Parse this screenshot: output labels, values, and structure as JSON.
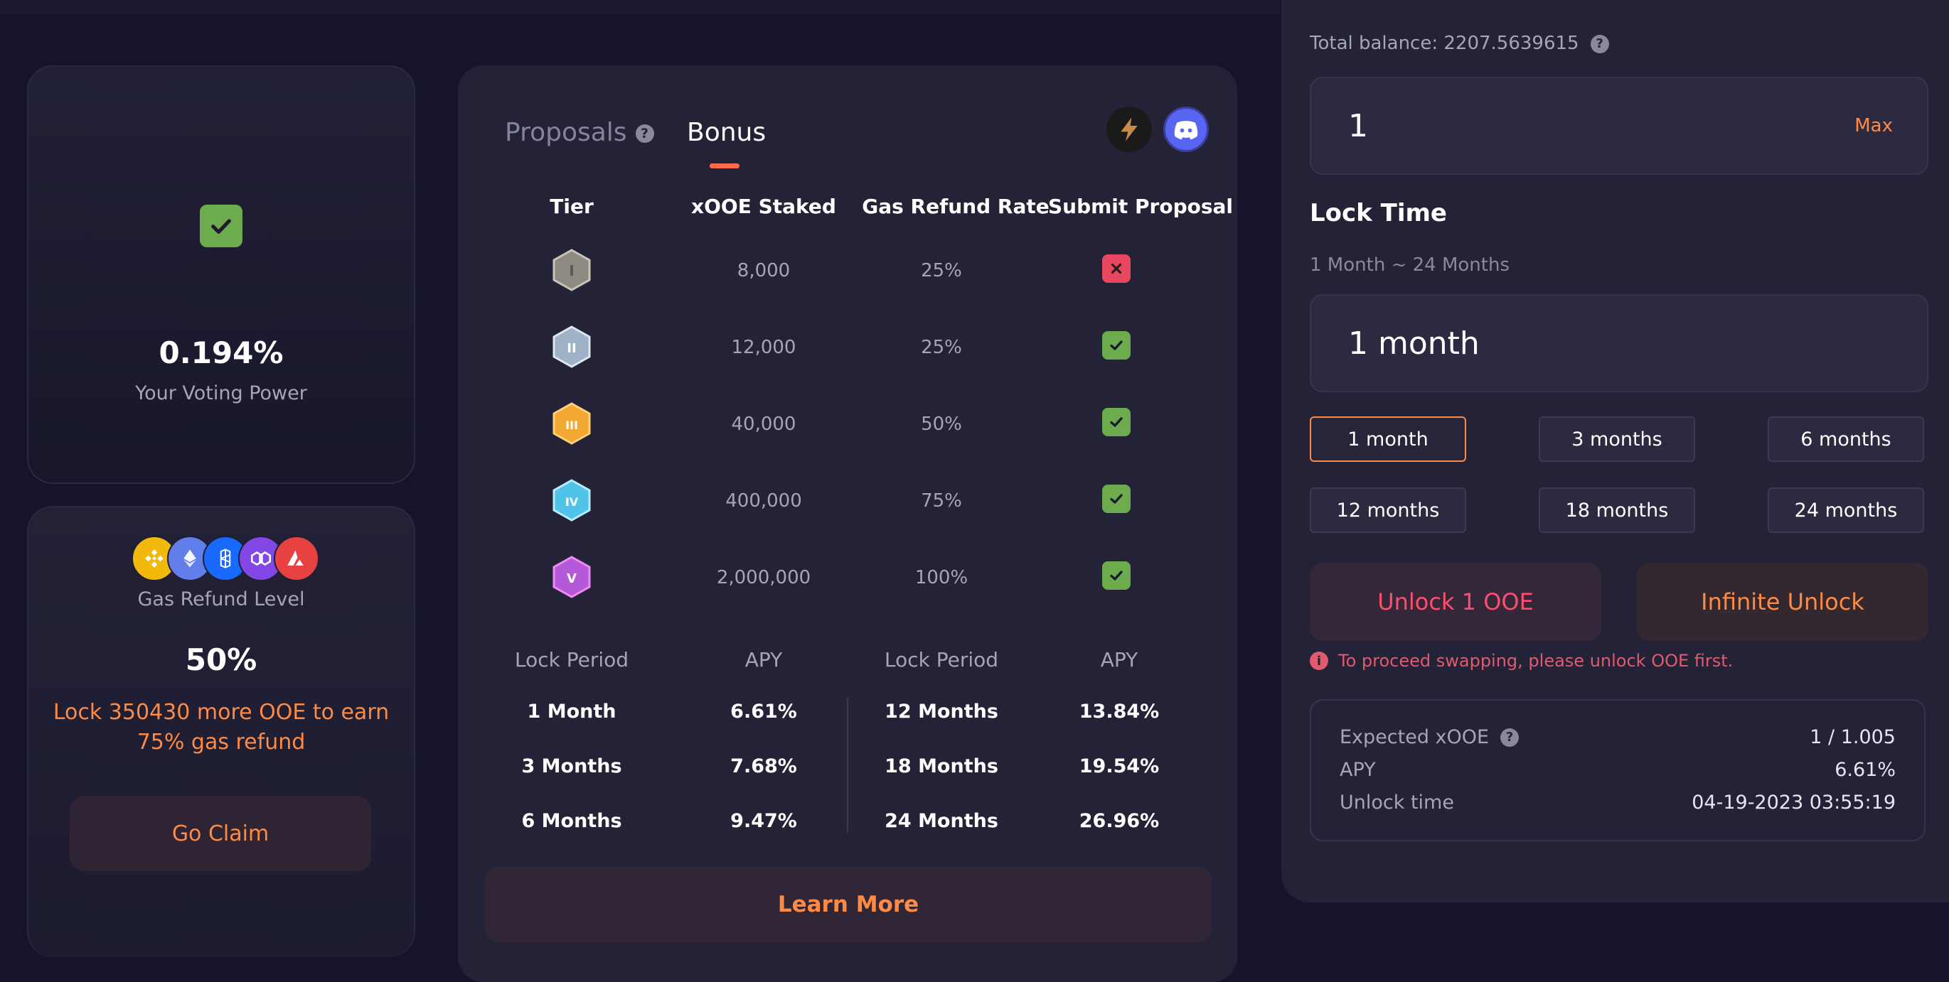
{
  "voting": {
    "percent": "0.194%",
    "label": "Your Voting Power"
  },
  "gas_refund": {
    "chains": [
      "bnb-chain-icon",
      "ethereum-icon",
      "fantom-icon",
      "polygon-icon",
      "avalanche-icon"
    ],
    "label": "Gas Refund Level",
    "percent": "50%",
    "message_line1": "Lock 350430 more OOE to earn",
    "message_line2": "75% gas refund",
    "claim_label": "Go Claim"
  },
  "bonus": {
    "tabs": {
      "proposals": "Proposals",
      "bonus": "Bonus"
    },
    "columns": [
      "Tier",
      "xOOE Staked",
      "Gas Refund Rate",
      "Submit Proposal"
    ],
    "tiers": [
      {
        "roman": "I",
        "staked": "8,000",
        "rate": "25%",
        "can_submit": false,
        "color": "#8e8a82"
      },
      {
        "roman": "II",
        "staked": "12,000",
        "rate": "25%",
        "can_submit": true,
        "color": "#9fb3c8"
      },
      {
        "roman": "III",
        "staked": "40,000",
        "rate": "50%",
        "can_submit": true,
        "color": "#f3a833"
      },
      {
        "roman": "IV",
        "staked": "400,000",
        "rate": "75%",
        "can_submit": true,
        "color": "#4fc4e8"
      },
      {
        "roman": "V",
        "staked": "2,000,000",
        "rate": "100%",
        "can_submit": true,
        "color": "#b45ad8"
      }
    ],
    "lock_headers": [
      "Lock Period",
      "APY",
      "Lock Period",
      "APY"
    ],
    "lock_left": [
      {
        "period": "1 Month",
        "apy": "6.61%"
      },
      {
        "period": "3 Months",
        "apy": "7.68%"
      },
      {
        "period": "6 Months",
        "apy": "9.47%"
      }
    ],
    "lock_right": [
      {
        "period": "12 Months",
        "apy": "13.84%"
      },
      {
        "period": "18 Months",
        "apy": "19.54%"
      },
      {
        "period": "24 Months",
        "apy": "26.96%"
      }
    ],
    "learn_more": "Learn More"
  },
  "lock_panel": {
    "total_balance": "Total balance: 2207.5639615",
    "amount_value": "1",
    "max_label": "Max",
    "lock_time_title": "Lock Time",
    "lock_range": "1 Month ~ 24 Months",
    "selected_duration": "1 month",
    "options": [
      "1 month",
      "3 months",
      "6 months",
      "12 months",
      "18 months",
      "24 months"
    ],
    "active_option": "1 month",
    "unlock_label": "Unlock 1 OOE",
    "infinite_label": "Infinite Unlock",
    "warning": "To proceed swapping, please unlock OOE first.",
    "summary": [
      {
        "key": "Expected xOOE",
        "value": "1 / 1.005",
        "help": true
      },
      {
        "key": "APY",
        "value": "6.61%",
        "help": false
      },
      {
        "key": "Unlock time",
        "value": "04-19-2023 03:55:19",
        "help": false
      }
    ]
  },
  "colors": {
    "accent_orange": "#ff8a43",
    "accent_red": "#ff4d6d",
    "check_green": "#6dac4d",
    "cross_red": "#e8475f",
    "background": "#15142a",
    "card": "#232237"
  }
}
